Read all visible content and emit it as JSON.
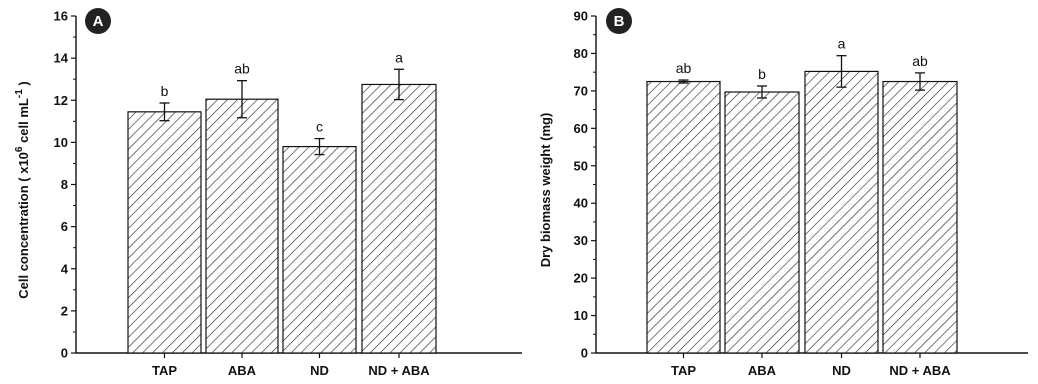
{
  "chart_data": [
    {
      "type": "bar",
      "panel": "A",
      "categories": [
        "TAP",
        "ABA",
        "ND",
        "ND + ABA"
      ],
      "values": [
        11.45,
        12.05,
        9.8,
        12.75
      ],
      "errors": [
        0.42,
        0.88,
        0.38,
        0.72
      ],
      "significance": [
        "b",
        "ab",
        "c",
        "a"
      ],
      "ylabel": "Cell concentration ( x10",
      "ylabel_sup1": "6",
      "ylabel_mid": " cell mL",
      "ylabel_sup2": "-1",
      "ylabel_end": " )",
      "ylim": [
        0,
        16
      ],
      "yticks": [
        0,
        2,
        4,
        6,
        8,
        10,
        12,
        14,
        16
      ],
      "grid": false,
      "pattern": "diagonal-hatch"
    },
    {
      "type": "bar",
      "panel": "B",
      "categories": [
        "TAP",
        "ABA",
        "ND",
        "ND + ABA"
      ],
      "values": [
        72.5,
        69.7,
        75.2,
        72.5
      ],
      "errors": [
        0.4,
        1.6,
        4.2,
        2.3
      ],
      "significance": [
        "ab",
        "b",
        "a",
        "ab"
      ],
      "ylabel": "Dry biomass weight (mg)",
      "ylim": [
        0,
        90
      ],
      "yticks": [
        0,
        10,
        20,
        30,
        40,
        50,
        60,
        70,
        80,
        90
      ],
      "grid": false,
      "pattern": "diagonal-hatch"
    }
  ],
  "colors": {
    "bar_fill": "#ffffff",
    "hatch": "#222222",
    "axis": "#111111",
    "panel_badge": "#222222"
  }
}
